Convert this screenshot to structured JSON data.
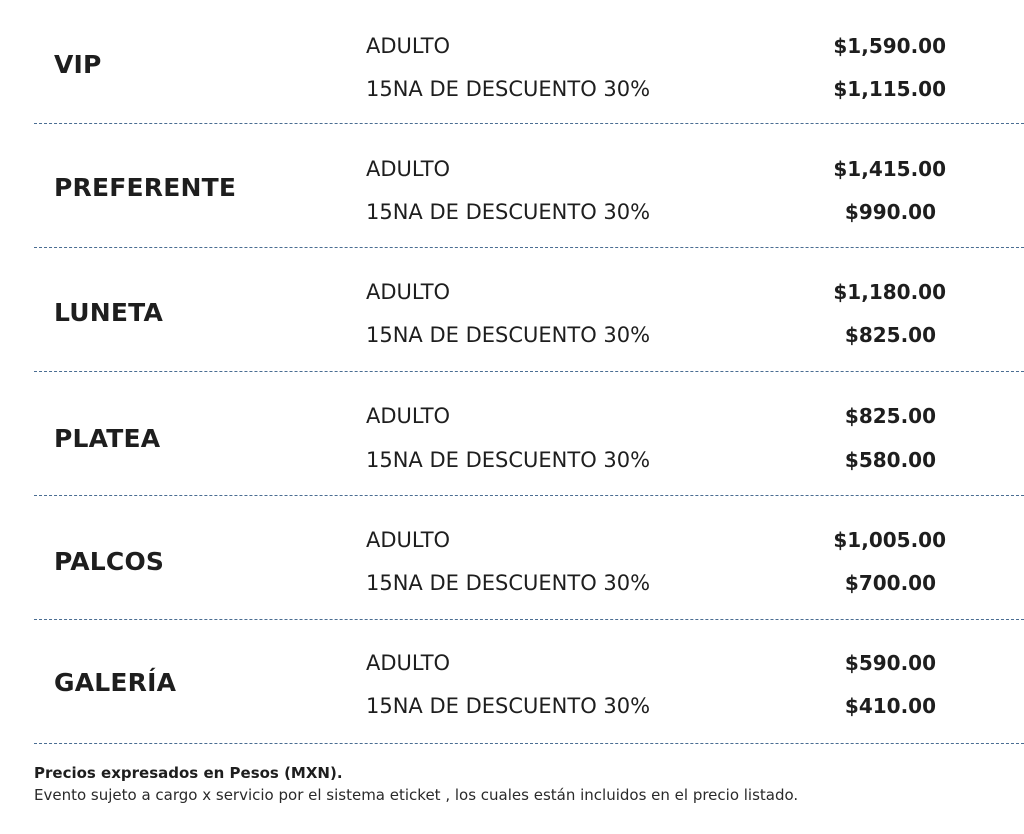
{
  "sections": [
    {
      "name": "VIP",
      "rows": [
        {
          "type": "ADULTO",
          "price": "$1,590.00"
        },
        {
          "type": "15NA DE DESCUENTO 30%",
          "price": "$1,115.00"
        }
      ]
    },
    {
      "name": "PREFERENTE",
      "rows": [
        {
          "type": "ADULTO",
          "price": "$1,415.00"
        },
        {
          "type": "15NA DE DESCUENTO 30%",
          "price": "$990.00"
        }
      ]
    },
    {
      "name": "LUNETA",
      "rows": [
        {
          "type": "ADULTO",
          "price": "$1,180.00"
        },
        {
          "type": "15NA DE DESCUENTO 30%",
          "price": "$825.00"
        }
      ]
    },
    {
      "name": "PLATEA",
      "rows": [
        {
          "type": "ADULTO",
          "price": "$825.00"
        },
        {
          "type": "15NA DE DESCUENTO 30%",
          "price": "$580.00"
        }
      ]
    },
    {
      "name": "PALCOS",
      "rows": [
        {
          "type": "ADULTO",
          "price": "$1,005.00"
        },
        {
          "type": "15NA DE DESCUENTO 30%",
          "price": "$700.00"
        }
      ]
    },
    {
      "name": "GALERÍA",
      "rows": [
        {
          "type": "ADULTO",
          "price": "$590.00"
        },
        {
          "type": "15NA DE DESCUENTO 30%",
          "price": "$410.00"
        }
      ]
    }
  ],
  "footer": {
    "title": "Precios expresados en Pesos (MXN).",
    "note": "Evento sujeto a cargo x servicio por el sistema eticket , los cuales están incluidos en el precio listado."
  },
  "colors": {
    "divider": "#4a6d92",
    "text": "#1e1e1e"
  }
}
